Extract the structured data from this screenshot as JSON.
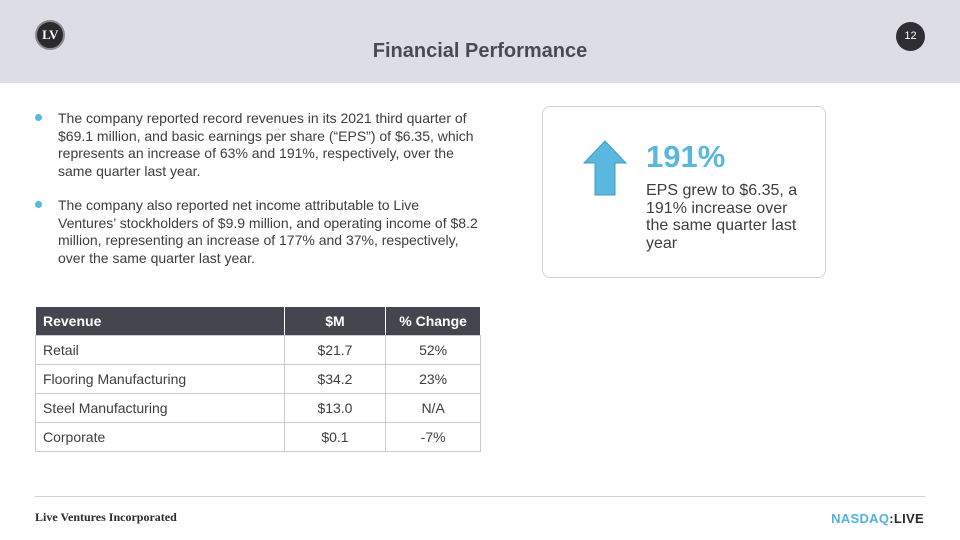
{
  "header": {
    "logo_text": "LV",
    "title": "Financial Performance",
    "page_number": "12"
  },
  "bullets": [
    "The company reported record revenues in its 2021 third quarter of $69.1 million, and basic earnings per share (“EPS”) of $6.35, which represents an increase of 63% and 191%, respectively, over the same quarter last year.",
    "The company also reported net income attributable to Live Ventures’ stockholders of $9.9 million, and operating income of $8.2 million, representing an increase of 177% and 37%, respectively, over the same quarter last year."
  ],
  "table": {
    "headers": [
      "Revenue",
      "$M",
      "% Change"
    ],
    "rows": [
      [
        "Retail",
        "$21.7",
        "52%"
      ],
      [
        "Flooring Manufacturing",
        "$34.2",
        "23%"
      ],
      [
        "Steel Manufacturing",
        "$13.0",
        "N/A"
      ],
      [
        "Corporate",
        "$0.1",
        "-7%"
      ]
    ]
  },
  "eps_card": {
    "icon": "up-arrow-icon",
    "big_value": "191%",
    "text": "EPS grew to $6.35, a 191% increase over the same quarter last year"
  },
  "footer": {
    "company": "Live Ventures Incorporated",
    "brand_part1": "NASDAQ",
    "brand_part2": ":LIVE"
  },
  "colors": {
    "accent": "#5ab7dd",
    "header_bg": "#dcdde6",
    "table_header_bg": "#45454f"
  }
}
